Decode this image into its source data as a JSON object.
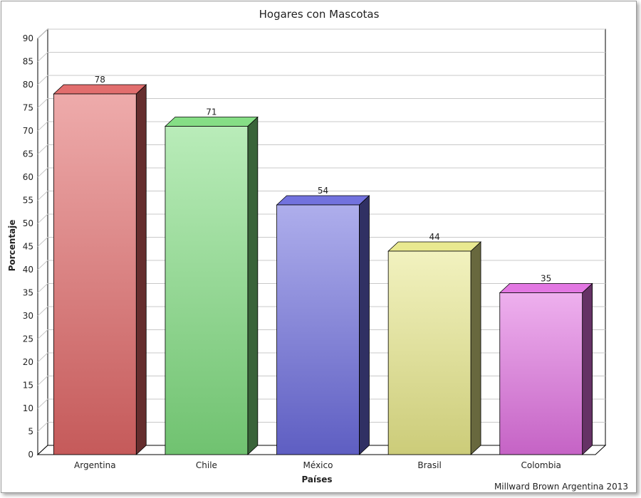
{
  "chart_data": {
    "type": "bar",
    "title": "Hogares con Mascotas",
    "xlabel": "Países",
    "ylabel": "Porcentaje",
    "categories": [
      "Argentina",
      "Chile",
      "México",
      "Brasil",
      "Colombia"
    ],
    "values": [
      78,
      71,
      54,
      44,
      35
    ],
    "value_labels": [
      "78",
      "71",
      "54",
      "44",
      "35"
    ],
    "ylim": [
      0,
      90
    ],
    "yticks": [
      0,
      5,
      10,
      15,
      20,
      25,
      30,
      35,
      40,
      45,
      50,
      55,
      60,
      65,
      70,
      75,
      80,
      85,
      90
    ],
    "grid": true,
    "legend": "none",
    "three_d": true,
    "colors": [
      "#e06666",
      "#7fdc7f",
      "#6b6bdc",
      "#e8e88a",
      "#e070e0"
    ],
    "credit": "Millward Brown Argentina 2013"
  }
}
